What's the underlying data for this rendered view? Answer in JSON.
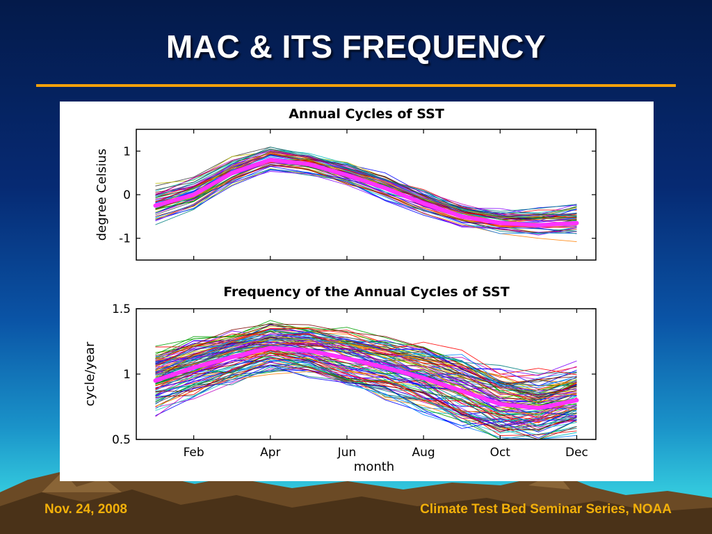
{
  "slide": {
    "title": "MAC & ITS FREQUENCY",
    "footer_date": "Nov. 24, 2008",
    "footer_source": "Climate Test Bed Seminar Series, NOAA",
    "colors": {
      "title": "#ffffff",
      "rule": "#f5a10a",
      "footer": "#f2b00a",
      "mean_line": "#ff33ff"
    }
  },
  "chart_data": [
    {
      "type": "line",
      "title": "Annual Cycles of SST",
      "xlabel": "",
      "ylabel": "degree Celsius",
      "x": [
        1,
        2,
        3,
        4,
        5,
        6,
        7,
        8,
        9,
        10,
        11,
        12
      ],
      "xlim": [
        0.5,
        12.5
      ],
      "ylim": [
        -1.5,
        1.5
      ],
      "yticks": [
        1,
        0,
        -1
      ],
      "ytick_labels": [
        "1",
        "0",
        "-1"
      ],
      "series": [
        {
          "role": "mean",
          "color": "#ff33ff",
          "values": [
            -0.25,
            0.0,
            0.5,
            0.8,
            0.7,
            0.45,
            0.15,
            -0.2,
            -0.5,
            -0.65,
            -0.7,
            -0.65
          ]
        }
      ],
      "ensemble": {
        "count": 60,
        "spread": [
          0.3,
          0.28,
          0.25,
          0.22,
          0.22,
          0.24,
          0.26,
          0.25,
          0.22,
          0.22,
          0.24,
          0.3
        ]
      }
    },
    {
      "type": "line",
      "title": "Frequency of the Annual Cycles of SST",
      "xlabel": "month",
      "ylabel": "cycle/year",
      "x": [
        1,
        2,
        3,
        4,
        5,
        6,
        7,
        8,
        9,
        10,
        11,
        12
      ],
      "xlim": [
        0.5,
        12.5
      ],
      "ylim": [
        0.5,
        1.5
      ],
      "yticks": [
        1.5,
        1,
        0.5
      ],
      "ytick_labels": [
        "1.5",
        "1",
        "0.5"
      ],
      "xticks": [
        2,
        4,
        6,
        8,
        10,
        12
      ],
      "xtick_labels": [
        "Feb",
        "Apr",
        "Jun",
        "Aug",
        "Oct",
        "Dec"
      ],
      "series": [
        {
          "role": "mean",
          "color": "#ff33ff",
          "values": [
            0.95,
            1.05,
            1.13,
            1.2,
            1.18,
            1.12,
            1.05,
            0.97,
            0.87,
            0.77,
            0.74,
            0.8
          ]
        }
      ],
      "ensemble": {
        "count": 110,
        "spread": [
          0.18,
          0.17,
          0.16,
          0.15,
          0.16,
          0.18,
          0.2,
          0.22,
          0.24,
          0.22,
          0.2,
          0.2
        ]
      }
    }
  ]
}
